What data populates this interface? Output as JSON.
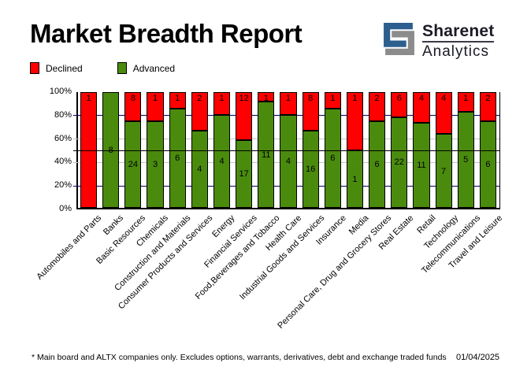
{
  "header": {
    "title": "Market Breadth Report",
    "logo": {
      "line1": "Sharenet",
      "line2": "Analytics"
    }
  },
  "legend": [
    {
      "label": "Declined",
      "color": "#ff0000"
    },
    {
      "label": "Advanced",
      "color": "#4a8b0e"
    }
  ],
  "colors": {
    "declined": "#ff0000",
    "advanced": "#4a8b0e",
    "grid_major": "#000066",
    "grid_minor": "#c6c6c6",
    "grid_mid": "#000000",
    "logo_blue": "#2d5f8e",
    "logo_gray": "#8c8c8c"
  },
  "chart_data": {
    "type": "bar",
    "stacked": true,
    "normalized": "percent_of_total",
    "title": "Market Breadth Report",
    "xlabel": "",
    "ylabel": "",
    "ylim": [
      0,
      100
    ],
    "categories": [
      "Automobiles and Parts",
      "Banks",
      "Basic Resources",
      "Chemicals",
      "Construction and Materials",
      "Consumer Products and Services",
      "Energy",
      "Financial Services",
      "Food,Beverages and Tobacco",
      "Health Care",
      "Industrial Goods and Services",
      "Insurance",
      "Media",
      "Personal Care, Drug and Grocery Stores",
      "Real Estate",
      "Retail",
      "Technology",
      "Telecommunications",
      "Travel and Leisure"
    ],
    "series": [
      {
        "name": "Declined",
        "color": "#ff0000",
        "values": [
          1,
          0,
          8,
          1,
          1,
          2,
          1,
          12,
          1,
          1,
          8,
          1,
          1,
          2,
          6,
          4,
          4,
          1,
          2
        ]
      },
      {
        "name": "Advanced",
        "color": "#4a8b0e",
        "values": [
          0,
          8,
          24,
          3,
          6,
          4,
          4,
          17,
          11,
          4,
          16,
          6,
          1,
          6,
          22,
          11,
          7,
          5,
          6
        ]
      }
    ],
    "yticks": [
      {
        "v": 100,
        "label": "100%"
      },
      {
        "v": 80,
        "label": "80%"
      },
      {
        "v": 60,
        "label": "60%"
      },
      {
        "v": 40,
        "label": "40%"
      },
      {
        "v": 20,
        "label": "20%"
      },
      {
        "v": 0,
        "label": "0%"
      }
    ],
    "gridlines": [
      {
        "y": 80,
        "color": "#000066",
        "over": false
      },
      {
        "y": 60,
        "color": "#c6c6c6",
        "over": false
      },
      {
        "y": 50,
        "color": "#000000",
        "over": true
      },
      {
        "y": 40,
        "color": "#c6c6c6",
        "over": false
      },
      {
        "y": 20,
        "color": "#000066",
        "over": false
      }
    ],
    "legend_position": "top-left",
    "value_labels": "shown_on_segments"
  },
  "footer": {
    "note": "* Main board and ALTX companies only. Excludes options, warrants, derivatives, debt and exchange traded funds",
    "date": "01/04/2025"
  }
}
